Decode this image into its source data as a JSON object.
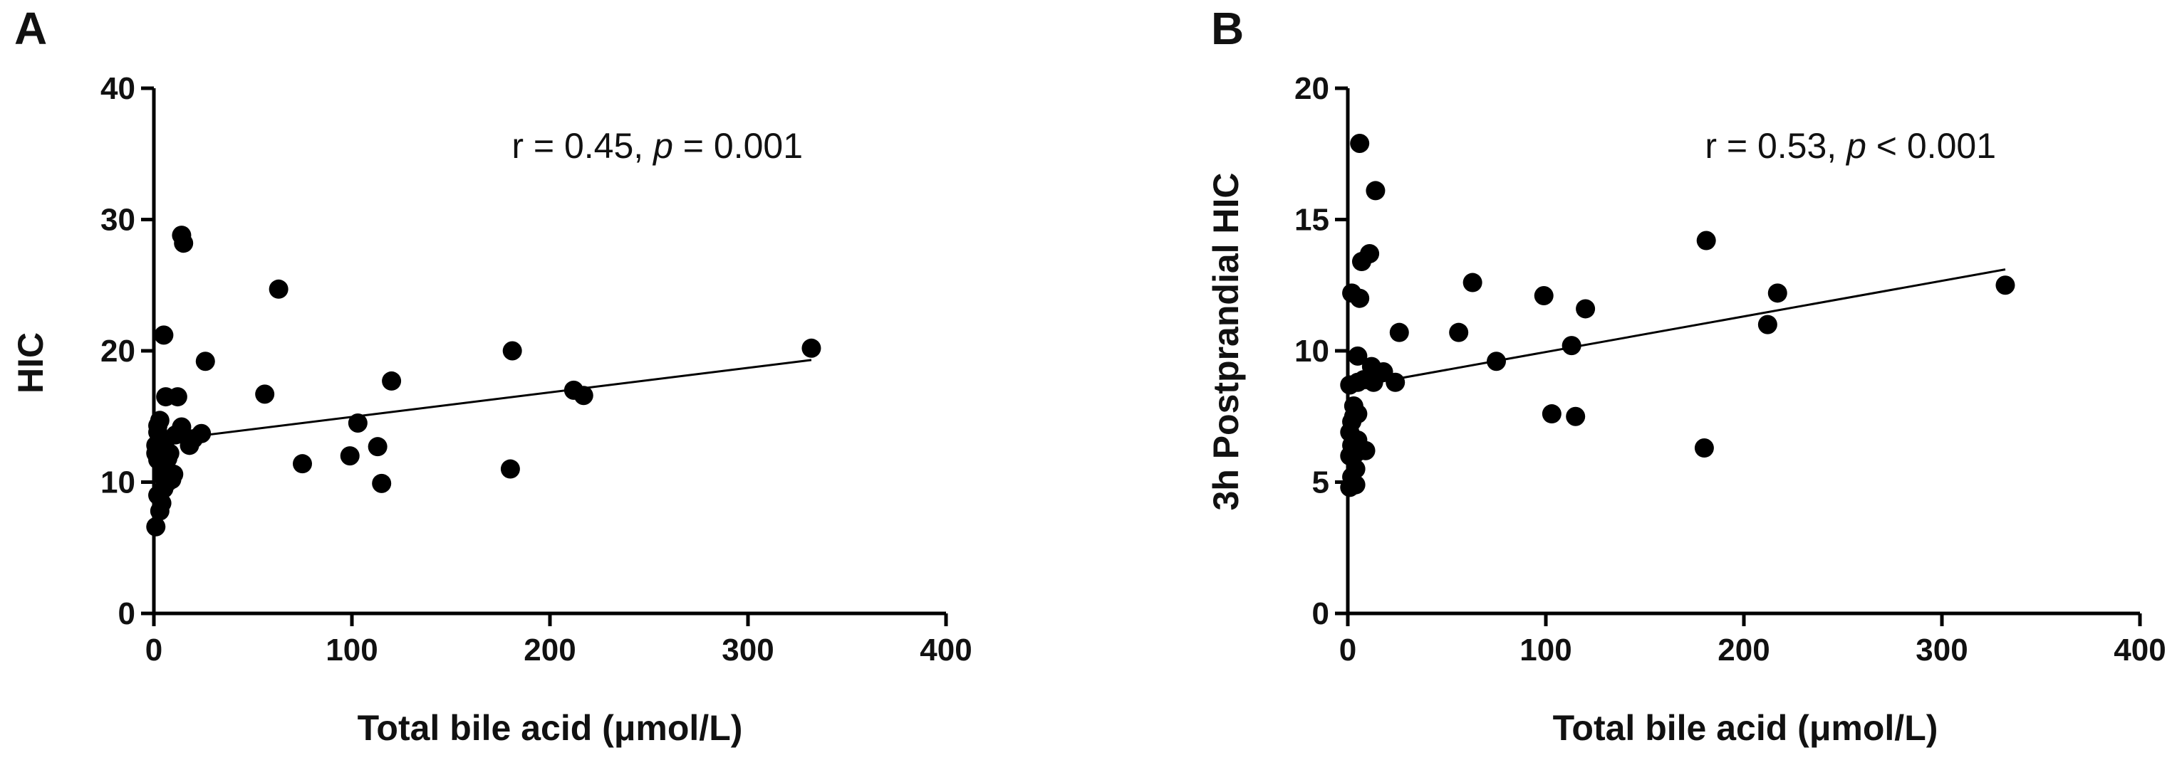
{
  "chart_data": [
    {
      "type": "scatter",
      "panel_label": "A",
      "xlabel": "Total bile acid (μmol/L)",
      "ylabel": "HIC",
      "xlim": [
        0,
        400
      ],
      "ylim": [
        0,
        40
      ],
      "xticks": [
        "0",
        "100",
        "200",
        "300",
        "400"
      ],
      "yticks": [
        "0",
        "10",
        "20",
        "30",
        "40"
      ],
      "xtick_values": [
        0,
        100,
        200,
        300,
        400
      ],
      "ytick_values": [
        0,
        10,
        20,
        30,
        40
      ],
      "annotation": {
        "prefix": "r = 0.45, ",
        "p": "p",
        "suffix": " = 0.001"
      },
      "fit_line": {
        "x": [
          0,
          332
        ],
        "y": [
          13.1,
          19.3
        ]
      },
      "points": [
        {
          "x": 1,
          "y": 6.6
        },
        {
          "x": 2,
          "y": 9.0
        },
        {
          "x": 2,
          "y": 11.7
        },
        {
          "x": 1,
          "y": 12.2
        },
        {
          "x": 1,
          "y": 12.8
        },
        {
          "x": 2,
          "y": 13.8
        },
        {
          "x": 2,
          "y": 14.3
        },
        {
          "x": 3,
          "y": 14.7
        },
        {
          "x": 3,
          "y": 7.8
        },
        {
          "x": 4,
          "y": 8.4
        },
        {
          "x": 4,
          "y": 10.5
        },
        {
          "x": 4,
          "y": 11.3
        },
        {
          "x": 5,
          "y": 12.6
        },
        {
          "x": 5,
          "y": 21.2
        },
        {
          "x": 5,
          "y": 9.5
        },
        {
          "x": 6,
          "y": 16.5
        },
        {
          "x": 6,
          "y": 13.2
        },
        {
          "x": 7,
          "y": 11.8
        },
        {
          "x": 7,
          "y": 10.0
        },
        {
          "x": 8,
          "y": 12.2
        },
        {
          "x": 9,
          "y": 10.2
        },
        {
          "x": 10,
          "y": 10.6
        },
        {
          "x": 11,
          "y": 13.6
        },
        {
          "x": 12,
          "y": 16.5
        },
        {
          "x": 14,
          "y": 14.2
        },
        {
          "x": 14,
          "y": 28.8
        },
        {
          "x": 15,
          "y": 28.2
        },
        {
          "x": 18,
          "y": 12.8
        },
        {
          "x": 20,
          "y": 13.3
        },
        {
          "x": 24,
          "y": 13.7
        },
        {
          "x": 26,
          "y": 19.2
        },
        {
          "x": 56,
          "y": 16.7
        },
        {
          "x": 63,
          "y": 24.7
        },
        {
          "x": 75,
          "y": 11.4
        },
        {
          "x": 99,
          "y": 12.0
        },
        {
          "x": 103,
          "y": 14.5
        },
        {
          "x": 113,
          "y": 12.7
        },
        {
          "x": 115,
          "y": 9.9
        },
        {
          "x": 120,
          "y": 17.7
        },
        {
          "x": 180,
          "y": 11.0
        },
        {
          "x": 181,
          "y": 20.0
        },
        {
          "x": 212,
          "y": 17.0
        },
        {
          "x": 217,
          "y": 16.6
        },
        {
          "x": 332,
          "y": 20.2
        }
      ]
    },
    {
      "type": "scatter",
      "panel_label": "B",
      "xlabel": "Total bile acid (μmol/L)",
      "ylabel": "3h Postprandial HIC",
      "xlim": [
        0,
        400
      ],
      "ylim": [
        0,
        20
      ],
      "xticks": [
        "0",
        "100",
        "200",
        "300",
        "400"
      ],
      "yticks": [
        "0",
        "5",
        "10",
        "15",
        "20"
      ],
      "xtick_values": [
        0,
        100,
        200,
        300,
        400
      ],
      "ytick_values": [
        0,
        5,
        10,
        15,
        20
      ],
      "annotation": {
        "prefix": "r = 0.53, ",
        "p": "p",
        "suffix": " < 0.001"
      },
      "fit_line": {
        "x": [
          0,
          332
        ],
        "y": [
          8.6,
          13.1
        ]
      },
      "points": [
        {
          "x": 1,
          "y": 4.8
        },
        {
          "x": 2,
          "y": 5.2
        },
        {
          "x": 1,
          "y": 6.0
        },
        {
          "x": 2,
          "y": 6.4
        },
        {
          "x": 1,
          "y": 6.9
        },
        {
          "x": 2,
          "y": 7.3
        },
        {
          "x": 3,
          "y": 7.5
        },
        {
          "x": 3,
          "y": 7.9
        },
        {
          "x": 1,
          "y": 8.7
        },
        {
          "x": 2,
          "y": 12.2
        },
        {
          "x": 4,
          "y": 4.9
        },
        {
          "x": 4,
          "y": 5.5
        },
        {
          "x": 4,
          "y": 6.1
        },
        {
          "x": 5,
          "y": 6.6
        },
        {
          "x": 5,
          "y": 7.6
        },
        {
          "x": 5,
          "y": 8.8
        },
        {
          "x": 5,
          "y": 9.8
        },
        {
          "x": 6,
          "y": 12.0
        },
        {
          "x": 6,
          "y": 17.9
        },
        {
          "x": 7,
          "y": 13.4
        },
        {
          "x": 8,
          "y": 8.9
        },
        {
          "x": 9,
          "y": 6.2
        },
        {
          "x": 10,
          "y": 8.9
        },
        {
          "x": 11,
          "y": 13.7
        },
        {
          "x": 12,
          "y": 9.4
        },
        {
          "x": 13,
          "y": 8.8
        },
        {
          "x": 14,
          "y": 16.1
        },
        {
          "x": 18,
          "y": 9.2
        },
        {
          "x": 24,
          "y": 8.8
        },
        {
          "x": 26,
          "y": 10.7
        },
        {
          "x": 56,
          "y": 10.7
        },
        {
          "x": 63,
          "y": 12.6
        },
        {
          "x": 75,
          "y": 9.6
        },
        {
          "x": 99,
          "y": 12.1
        },
        {
          "x": 103,
          "y": 7.6
        },
        {
          "x": 113,
          "y": 10.2
        },
        {
          "x": 115,
          "y": 7.5
        },
        {
          "x": 120,
          "y": 11.6
        },
        {
          "x": 180,
          "y": 6.3
        },
        {
          "x": 181,
          "y": 14.2
        },
        {
          "x": 212,
          "y": 11.0
        },
        {
          "x": 217,
          "y": 12.2
        },
        {
          "x": 332,
          "y": 12.5
        }
      ]
    }
  ]
}
